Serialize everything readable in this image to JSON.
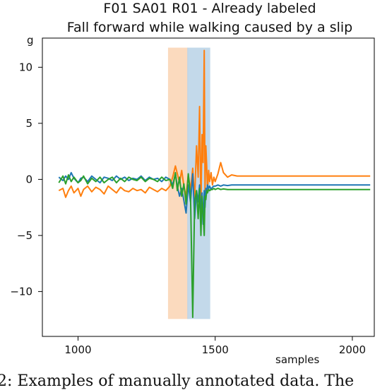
{
  "chart_data": {
    "type": "line",
    "title": "F01 SA01 R01 - Already labeled",
    "subtitle": "Fall forward while walking caused by a slip",
    "xlabel": "samples",
    "ylabel": "g",
    "xlim": [
      870,
      2080
    ],
    "ylim": [
      -14,
      12.6
    ],
    "xticks": [
      1000,
      1500,
      2000
    ],
    "yticks": [
      10,
      5,
      0,
      -5,
      -10
    ],
    "grid": false,
    "legend": "none",
    "shaded_regions": [
      {
        "x0": 1330,
        "x1": 1400,
        "y0": -12.4,
        "y1": 11.7,
        "color": "#fbd7b8"
      },
      {
        "x0": 1400,
        "x1": 1480,
        "y0": -12.4,
        "y1": 11.7,
        "color": "#bdd5e8"
      }
    ],
    "series": [
      {
        "color": "#ff7f0e",
        "x": [
          930,
          945,
          955,
          965,
          975,
          985,
          1000,
          1010,
          1020,
          1035,
          1050,
          1065,
          1080,
          1095,
          1110,
          1125,
          1140,
          1155,
          1170,
          1185,
          1200,
          1215,
          1230,
          1245,
          1260,
          1275,
          1290,
          1305,
          1320,
          1335,
          1345,
          1355,
          1362,
          1370,
          1378,
          1386,
          1394,
          1402,
          1410,
          1418,
          1425,
          1432,
          1438,
          1443,
          1448,
          1452,
          1456,
          1460,
          1463,
          1466,
          1469,
          1472,
          1476,
          1480,
          1485,
          1490,
          1495,
          1500,
          1510,
          1520,
          1530,
          1545,
          1560,
          1580,
          1600,
          1650,
          1700,
          1800,
          1900,
          2000,
          2065
        ],
        "y": [
          -1.0,
          -0.8,
          -1.6,
          -1.0,
          -0.6,
          -1.2,
          -0.8,
          -1.5,
          -0.9,
          -0.6,
          -1.1,
          -0.7,
          -0.9,
          -1.3,
          -0.6,
          -0.9,
          -1.2,
          -0.7,
          -1.0,
          -1.1,
          -0.8,
          -1.0,
          -0.9,
          -1.2,
          -0.7,
          -0.9,
          -1.1,
          -0.8,
          -1.0,
          -0.6,
          0.2,
          1.2,
          0.5,
          -0.3,
          0.8,
          -0.6,
          -1.5,
          0.4,
          -0.9,
          1.0,
          -1.8,
          3.0,
          0.2,
          6.5,
          -2.5,
          4.0,
          1.5,
          11.5,
          -1.0,
          3.0,
          1.2,
          -1.0,
          0.8,
          -0.2,
          0.6,
          -0.5,
          0.2,
          -0.2,
          0.5,
          1.5,
          0.6,
          0.2,
          0.4,
          0.3,
          0.3,
          0.3,
          0.3,
          0.3,
          0.3,
          0.3,
          0.3
        ]
      },
      {
        "color": "#1f77b4",
        "x": [
          930,
          945,
          955,
          965,
          975,
          985,
          1000,
          1010,
          1020,
          1035,
          1050,
          1065,
          1080,
          1095,
          1110,
          1125,
          1140,
          1155,
          1170,
          1185,
          1200,
          1215,
          1230,
          1245,
          1260,
          1275,
          1290,
          1305,
          1320,
          1335,
          1345,
          1355,
          1362,
          1370,
          1378,
          1386,
          1394,
          1402,
          1410,
          1418,
          1425,
          1432,
          1438,
          1443,
          1448,
          1452,
          1456,
          1460,
          1463,
          1466,
          1469,
          1472,
          1476,
          1480,
          1485,
          1490,
          1495,
          1500,
          1510,
          1520,
          1530,
          1545,
          1560,
          1580,
          1600,
          1650,
          1700,
          1800,
          1900,
          2000,
          2065
        ],
        "y": [
          0.2,
          -0.1,
          0.3,
          0.0,
          0.6,
          0.1,
          -0.3,
          0.1,
          0.2,
          -0.2,
          0.3,
          0.0,
          -0.3,
          0.2,
          0.1,
          -0.1,
          0.3,
          0.0,
          0.2,
          -0.1,
          0.1,
          0.0,
          0.3,
          -0.1,
          0.2,
          0.0,
          0.1,
          -0.2,
          0.2,
          0.0,
          -0.5,
          0.5,
          -0.6,
          -1.5,
          -0.8,
          -1.9,
          -3.0,
          -0.5,
          -2.0,
          0.5,
          -3.5,
          -1.0,
          -2.0,
          -0.5,
          -3.0,
          -1.2,
          -4.0,
          -1.0,
          -2.5,
          -0.8,
          -1.2,
          -0.5,
          -0.8,
          -0.6,
          -0.9,
          -0.7,
          -0.6,
          -0.6,
          -0.5,
          -0.6,
          -0.5,
          -0.55,
          -0.5,
          -0.5,
          -0.5,
          -0.5,
          -0.5,
          -0.5,
          -0.5,
          -0.5,
          -0.5
        ]
      },
      {
        "color": "#2ca02c",
        "x": [
          930,
          945,
          955,
          965,
          975,
          985,
          1000,
          1010,
          1020,
          1035,
          1050,
          1065,
          1080,
          1095,
          1110,
          1125,
          1140,
          1155,
          1170,
          1185,
          1200,
          1215,
          1230,
          1245,
          1260,
          1275,
          1290,
          1305,
          1320,
          1335,
          1345,
          1355,
          1362,
          1370,
          1378,
          1386,
          1394,
          1402,
          1410,
          1418,
          1425,
          1432,
          1438,
          1443,
          1448,
          1452,
          1456,
          1460,
          1463,
          1466,
          1469,
          1472,
          1476,
          1480,
          1485,
          1490,
          1495,
          1500,
          1510,
          1520,
          1530,
          1545,
          1560,
          1580,
          1600,
          1650,
          1700,
          1800,
          1900,
          2000,
          2065
        ],
        "y": [
          -0.3,
          0.3,
          -0.4,
          0.4,
          -0.2,
          0.2,
          -0.3,
          -0.1,
          0.3,
          -0.4,
          0.1,
          -0.2,
          0.2,
          -0.3,
          0.0,
          0.2,
          -0.3,
          0.1,
          -0.2,
          0.2,
          0.0,
          -0.1,
          0.2,
          -0.2,
          0.1,
          0.0,
          -0.2,
          0.2,
          -0.1,
          0.0,
          -0.8,
          0.6,
          -1.0,
          0.2,
          -1.5,
          -0.4,
          -2.2,
          0.5,
          -1.5,
          -12.3,
          -2.0,
          -1.0,
          -3.5,
          -0.8,
          -5.0,
          -1.5,
          -3.0,
          -5.0,
          -1.5,
          -1.8,
          -1.0,
          -1.2,
          -0.9,
          -1.0,
          -0.9,
          -0.9,
          -0.8,
          -0.9,
          -0.8,
          -0.9,
          -0.85,
          -0.9,
          -0.9,
          -0.9,
          -0.9,
          -0.9,
          -0.9,
          -0.9,
          -0.9,
          -0.9,
          -0.9
        ]
      }
    ]
  },
  "caption": "2: Examples of manually annotated data. The"
}
